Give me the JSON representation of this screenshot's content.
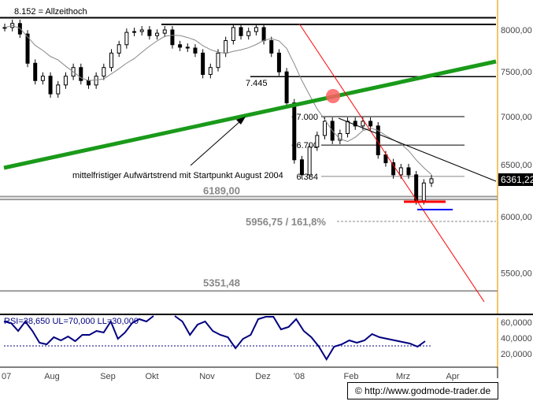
{
  "chart_data": {
    "type": "candlestick",
    "scale": "log",
    "ylim": [
      5300,
      8250
    ],
    "yticks": [
      "8000,00",
      "7500,00",
      "7000,00",
      "6500,00",
      "6000,00",
      "5500,00"
    ],
    "ytick_values": [
      8000,
      7500,
      7000,
      6500,
      6000,
      5500
    ],
    "xticks": [
      "07",
      "Aug",
      "Sep",
      "Okt",
      "Nov",
      "Dez",
      "'08",
      "Feb",
      "Mrz",
      "Apr"
    ],
    "close": [
      8030,
      8080,
      7950,
      7600,
      7400,
      7450,
      7250,
      7350,
      7450,
      7550,
      7400,
      7350,
      7450,
      7550,
      7720,
      7820,
      7970,
      7980,
      8000,
      7930,
      7960,
      8000,
      7820,
      7790,
      7780,
      7720,
      7470,
      7550,
      7720,
      7870,
      8030,
      7930,
      7980,
      8030,
      7870,
      7720,
      7500,
      7150,
      6550,
      6400,
      6680,
      6800,
      6950,
      6750,
      6820,
      6950,
      6900,
      6950,
      6900,
      6600,
      6520,
      6400,
      6470,
      6400,
      6150,
      6320,
      6361.22
    ],
    "last_price": "6361,22",
    "annotations": {
      "ath": "8.152 = Allzeithoch",
      "ath_value": 8152,
      "low1": "7.445",
      "low1_value": 7445,
      "l7000": "~7.000",
      "l7000_value": 7000,
      "l6700": "~6.700",
      "l6700_value": 6700,
      "l6384": "6.384",
      "l6384_value": 6384,
      "s6189": "6189,00",
      "s6189_value": 6189,
      "s6162_value": 6162,
      "fib": "5956,75 / 161,8%",
      "fib_value": 5956.75,
      "s5351": "5351,48",
      "s5351_value": 5351.48,
      "trend": "mittelfristiger Aufwärtstrend mit Startpunkt August 2004"
    },
    "colors": {
      "trend": "#1a9a1a",
      "red": "#ff0000",
      "blue": "#0000ff",
      "rsi": "#000080",
      "axis": "#f0b030"
    },
    "rsi": {
      "label": "RSI=38,650 UL=70,000 LL=30,000",
      "yticks": [
        "60,0000",
        "40,0000",
        "20,0000"
      ],
      "ytick_values": [
        60,
        40,
        20
      ],
      "ll": 30,
      "segments": [
        [
          61,
          59,
          49,
          61,
          49,
          34,
          32,
          41,
          37,
          42,
          36,
          44,
          44,
          49,
          47,
          61,
          39,
          47,
          59,
          64,
          61,
          68
        ],
        [
          68,
          61,
          44,
          57,
          61,
          49,
          44,
          41,
          27,
          39,
          44,
          64,
          67,
          67,
          51,
          54,
          64,
          49,
          41,
          29,
          13,
          29,
          32,
          37,
          34,
          37,
          45,
          41,
          39,
          37,
          35,
          33,
          29,
          36
        ]
      ]
    }
  },
  "footer": "© http://www.godmode-trader.de"
}
